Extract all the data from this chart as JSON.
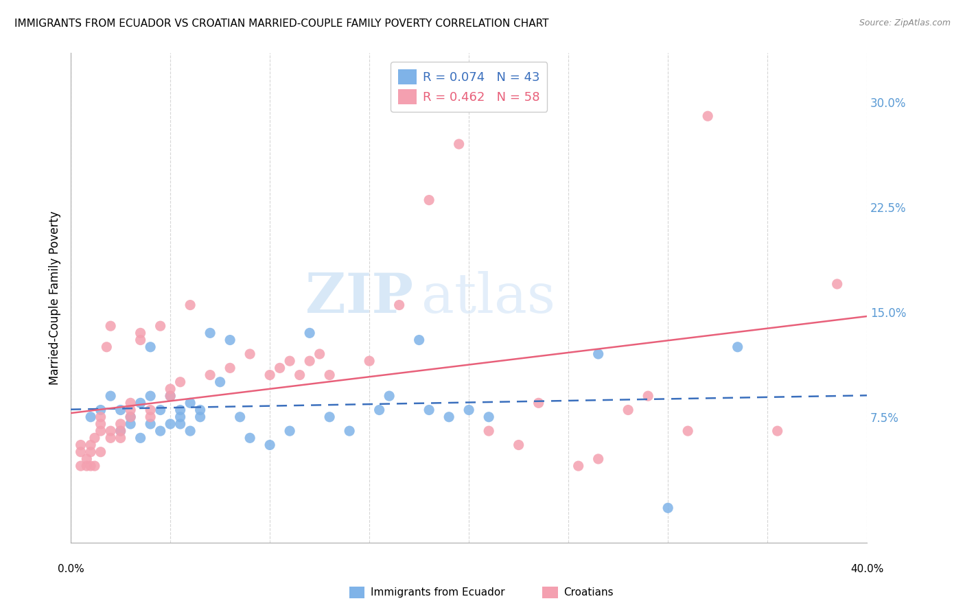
{
  "title": "IMMIGRANTS FROM ECUADOR VS CROATIAN MARRIED-COUPLE FAMILY POVERTY CORRELATION CHART",
  "source": "Source: ZipAtlas.com",
  "ylabel": "Married-Couple Family Poverty",
  "yticks": [
    0.0,
    0.075,
    0.15,
    0.225,
    0.3
  ],
  "ytick_labels": [
    "",
    "7.5%",
    "15.0%",
    "22.5%",
    "30.0%"
  ],
  "xmin": 0.0,
  "xmax": 0.4,
  "ymin": -0.015,
  "ymax": 0.335,
  "grid_color": "#cccccc",
  "background_color": "#ffffff",
  "watermark_zip": "ZIP",
  "watermark_atlas": "atlas",
  "legend_r1": "R = 0.074",
  "legend_n1": "N = 43",
  "legend_r2": "R = 0.462",
  "legend_n2": "N = 58",
  "series1_color": "#7fb3e8",
  "series2_color": "#f4a0b0",
  "series1_label": "Immigrants from Ecuador",
  "series2_label": "Croatians",
  "trend1_color": "#3a6fbd",
  "trend2_color": "#e8607a",
  "ecuador_x": [
    0.01,
    0.015,
    0.02,
    0.025,
    0.025,
    0.03,
    0.03,
    0.035,
    0.035,
    0.04,
    0.04,
    0.04,
    0.045,
    0.045,
    0.05,
    0.05,
    0.055,
    0.055,
    0.055,
    0.06,
    0.06,
    0.065,
    0.065,
    0.07,
    0.075,
    0.08,
    0.085,
    0.09,
    0.1,
    0.11,
    0.12,
    0.13,
    0.14,
    0.155,
    0.16,
    0.175,
    0.18,
    0.19,
    0.2,
    0.21,
    0.265,
    0.3,
    0.335
  ],
  "ecuador_y": [
    0.075,
    0.08,
    0.09,
    0.065,
    0.08,
    0.07,
    0.075,
    0.06,
    0.085,
    0.09,
    0.07,
    0.125,
    0.065,
    0.08,
    0.07,
    0.09,
    0.075,
    0.07,
    0.08,
    0.065,
    0.085,
    0.075,
    0.08,
    0.135,
    0.1,
    0.13,
    0.075,
    0.06,
    0.055,
    0.065,
    0.135,
    0.075,
    0.065,
    0.08,
    0.09,
    0.13,
    0.08,
    0.075,
    0.08,
    0.075,
    0.12,
    0.01,
    0.125
  ],
  "croatian_x": [
    0.005,
    0.005,
    0.005,
    0.008,
    0.008,
    0.01,
    0.01,
    0.01,
    0.012,
    0.012,
    0.015,
    0.015,
    0.015,
    0.015,
    0.018,
    0.02,
    0.02,
    0.02,
    0.025,
    0.025,
    0.025,
    0.03,
    0.03,
    0.03,
    0.035,
    0.035,
    0.04,
    0.04,
    0.045,
    0.05,
    0.05,
    0.055,
    0.06,
    0.07,
    0.08,
    0.09,
    0.1,
    0.105,
    0.11,
    0.115,
    0.12,
    0.125,
    0.13,
    0.15,
    0.165,
    0.18,
    0.195,
    0.21,
    0.225,
    0.235,
    0.255,
    0.265,
    0.28,
    0.29,
    0.31,
    0.32,
    0.355,
    0.385
  ],
  "croatian_y": [
    0.04,
    0.05,
    0.055,
    0.04,
    0.045,
    0.04,
    0.05,
    0.055,
    0.04,
    0.06,
    0.05,
    0.065,
    0.07,
    0.075,
    0.125,
    0.06,
    0.065,
    0.14,
    0.06,
    0.065,
    0.07,
    0.075,
    0.08,
    0.085,
    0.13,
    0.135,
    0.075,
    0.08,
    0.14,
    0.09,
    0.095,
    0.1,
    0.155,
    0.105,
    0.11,
    0.12,
    0.105,
    0.11,
    0.115,
    0.105,
    0.115,
    0.12,
    0.105,
    0.115,
    0.155,
    0.23,
    0.27,
    0.065,
    0.055,
    0.085,
    0.04,
    0.045,
    0.08,
    0.09,
    0.065,
    0.29,
    0.065,
    0.17
  ]
}
